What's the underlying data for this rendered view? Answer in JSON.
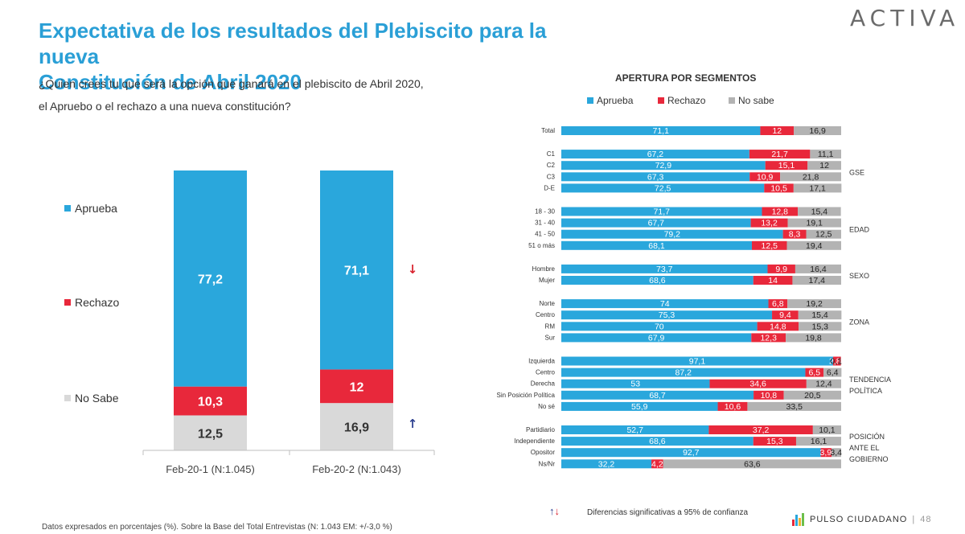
{
  "title": {
    "line1": "Expectativa de los resultados del Plebiscito para la nueva",
    "line2": "Constitución de Abril 2020"
  },
  "question": {
    "line1": "¿Quien crees tu que será la opción que ganará en el plebiscito de Abril 2020,",
    "line2": "el Apruebo o el rechazo a una nueva constitución?"
  },
  "logo": "ACTIVA",
  "colors": {
    "aprueba": "#2aa7dc",
    "rechazo": "#e8283b",
    "nosabe": "#b3b3b3",
    "nosabe_light": "#d9d9d9",
    "arrow_down": "#d9232f",
    "arrow_up": "#2b3f8f"
  },
  "chart_data": [
    {
      "type": "bar",
      "stacked": true,
      "categories": [
        "Feb-20-1 (N:1.045)",
        "Feb-20-2 (N:1.043)"
      ],
      "series": [
        {
          "name": "No Sabe",
          "values": [
            12.5,
            16.9
          ]
        },
        {
          "name": "Rechazo",
          "values": [
            10.3,
            12
          ]
        },
        {
          "name": "Aprueba",
          "values": [
            77.2,
            71.1
          ]
        }
      ],
      "value_labels": {
        "Aprueba": [
          "77,2",
          "71,1"
        ],
        "Rechazo": [
          "10,3",
          "12"
        ],
        "No Sabe": [
          "12,5",
          "16,9"
        ]
      },
      "legend": [
        "Aprueba",
        "Rechazo",
        "No Sabe"
      ],
      "significance": [
        "down",
        "",
        "up"
      ],
      "ylim": [
        0,
        100
      ]
    },
    {
      "type": "bar",
      "orientation": "horizontal",
      "stacked": true,
      "title": "APERTURA POR SEGMENTOS",
      "legend": [
        "Aprueba",
        "Rechazo",
        "No sabe"
      ],
      "groups": [
        {
          "label": "",
          "rows": [
            {
              "label": "Total",
              "values": [
                71.1,
                12,
                16.9
              ],
              "texts": [
                "71,1",
                "12",
                "16,9"
              ]
            }
          ]
        },
        {
          "label": "GSE",
          "rows": [
            {
              "label": "C1",
              "values": [
                67.2,
                21.7,
                11.1
              ],
              "texts": [
                "67,2",
                "21,7",
                "11,1"
              ]
            },
            {
              "label": "C2",
              "values": [
                72.9,
                15.1,
                12
              ],
              "texts": [
                "72,9",
                "15,1",
                "12"
              ]
            },
            {
              "label": "C3",
              "values": [
                67.3,
                10.9,
                21.8
              ],
              "texts": [
                "67,3",
                "10,9",
                "21,8"
              ]
            },
            {
              "label": "D-E",
              "values": [
                72.5,
                10.5,
                17.1
              ],
              "texts": [
                "72,5",
                "10,5",
                "17,1"
              ]
            }
          ]
        },
        {
          "label": "EDAD",
          "rows": [
            {
              "label": "18 - 30",
              "values": [
                71.7,
                12.8,
                15.4
              ],
              "texts": [
                "71,7",
                "12,8",
                "15,4"
              ]
            },
            {
              "label": "31 - 40",
              "values": [
                67.7,
                13.2,
                19.1
              ],
              "texts": [
                "67,7",
                "13,2",
                "19,1"
              ]
            },
            {
              "label": "41 - 50",
              "values": [
                79.2,
                8.3,
                12.5
              ],
              "texts": [
                "79,2",
                "8,3",
                "12,5"
              ]
            },
            {
              "label": "51 o más",
              "values": [
                68.1,
                12.5,
                19.4
              ],
              "texts": [
                "68,1",
                "12,5",
                "19,4"
              ]
            }
          ]
        },
        {
          "label": "SEXO",
          "rows": [
            {
              "label": "Hombre",
              "values": [
                73.7,
                9.9,
                16.4
              ],
              "texts": [
                "73,7",
                "9,9",
                "16,4"
              ]
            },
            {
              "label": "Mujer",
              "values": [
                68.6,
                14,
                17.4
              ],
              "texts": [
                "68,6",
                "14",
                "17,4"
              ]
            }
          ]
        },
        {
          "label": "ZONA",
          "rows": [
            {
              "label": "Norte",
              "values": [
                74,
                6.8,
                19.2
              ],
              "texts": [
                "74",
                "6,8",
                "19,2"
              ]
            },
            {
              "label": "Centro",
              "values": [
                75.3,
                9.4,
                15.4
              ],
              "texts": [
                "75,3",
                "9,4",
                "15,4"
              ]
            },
            {
              "label": "RM",
              "values": [
                70,
                14.8,
                15.3
              ],
              "texts": [
                "70",
                "14,8",
                "15,3"
              ]
            },
            {
              "label": "Sur",
              "values": [
                67.9,
                12.3,
                19.8
              ],
              "texts": [
                "67,9",
                "12,3",
                "19,8"
              ]
            }
          ]
        },
        {
          "label": "TENDENCIA POLÍTICA",
          "label_lines": [
            "TENDENCIA",
            "POLÍTICA"
          ],
          "rows": [
            {
              "label": "Izquierda",
              "values": [
                97.1,
                2.8,
                0.1
              ],
              "texts": [
                "97,1",
                "2,8",
                "0,1"
              ]
            },
            {
              "label": "Centro",
              "values": [
                87.2,
                6.5,
                6.4
              ],
              "texts": [
                "87,2",
                "6,5",
                "6,4"
              ]
            },
            {
              "label": "Derecha",
              "values": [
                53,
                34.6,
                12.4
              ],
              "texts": [
                "53",
                "34,6",
                "12,4"
              ]
            },
            {
              "label": "Sin Posición Política",
              "values": [
                68.7,
                10.8,
                20.5
              ],
              "texts": [
                "68,7",
                "10,8",
                "20,5"
              ]
            },
            {
              "label": "No sé",
              "values": [
                55.9,
                10.6,
                33.5
              ],
              "texts": [
                "55,9",
                "10,6",
                "33,5"
              ]
            }
          ]
        },
        {
          "label": "POSICIÓN ANTE EL GOBIERNO",
          "label_lines": [
            "POSICIÓN",
            "ANTE EL",
            "GOBIERNO"
          ],
          "rows": [
            {
              "label": "Partidiario",
              "values": [
                52.7,
                37.2,
                10.1
              ],
              "texts": [
                "52,7",
                "37,2",
                "10,1"
              ]
            },
            {
              "label": "Independiente",
              "values": [
                68.6,
                15.3,
                16.1
              ],
              "texts": [
                "68,6",
                "15,3",
                "16,1"
              ]
            },
            {
              "label": "Opositor",
              "values": [
                92.7,
                3.9,
                3.4
              ],
              "texts": [
                "92,7",
                "3,9",
                "3,4"
              ]
            },
            {
              "label": "Ns/Nr",
              "values": [
                32.2,
                4.2,
                63.6
              ],
              "texts": [
                "32,2",
                "4,2",
                "63,6"
              ]
            }
          ]
        }
      ],
      "xlim": [
        0,
        100
      ]
    }
  ],
  "legend_note": "Diferencias  significativas a 95% de confianza",
  "footer": "Datos expresados en porcentajes (%). Sobre la Base del Total Entrevistas (N: 1.043  EM: +/-3,0 %)",
  "brand": {
    "name": "PULSO CIUDADANO",
    "page": "48"
  }
}
